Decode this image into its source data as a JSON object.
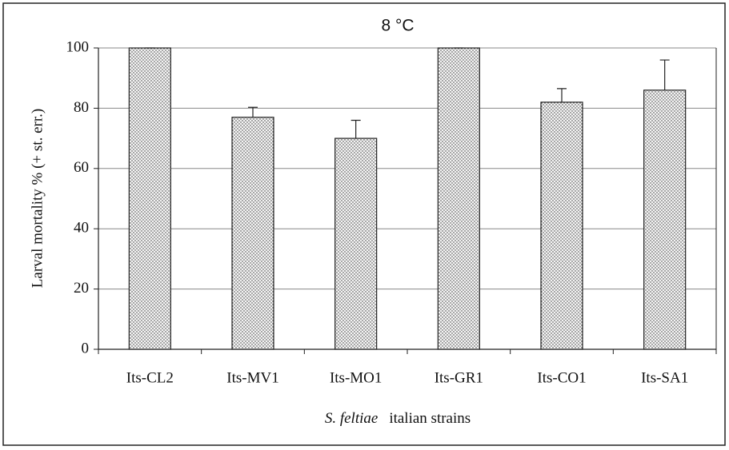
{
  "chart_data": {
    "type": "bar",
    "title": "8 °C",
    "y_label": "Larval mortality % (+ st. err.)",
    "x_label": [
      "S. feltiae",
      "italian strains"
    ],
    "categories": [
      "Its-CL2",
      "Its-MV1",
      "Its-MO1",
      "Its-GR1",
      "Its-CO1",
      "Its-SA1"
    ],
    "values": [
      100,
      77,
      70,
      100,
      82,
      86
    ],
    "errors": [
      0,
      3.3,
      6,
      0,
      4.5,
      10
    ],
    "color": "#f4f4f4",
    "ylim": [
      0,
      100
    ],
    "yticks": [
      0,
      20,
      40,
      60,
      80,
      100
    ],
    "grid": true
  }
}
